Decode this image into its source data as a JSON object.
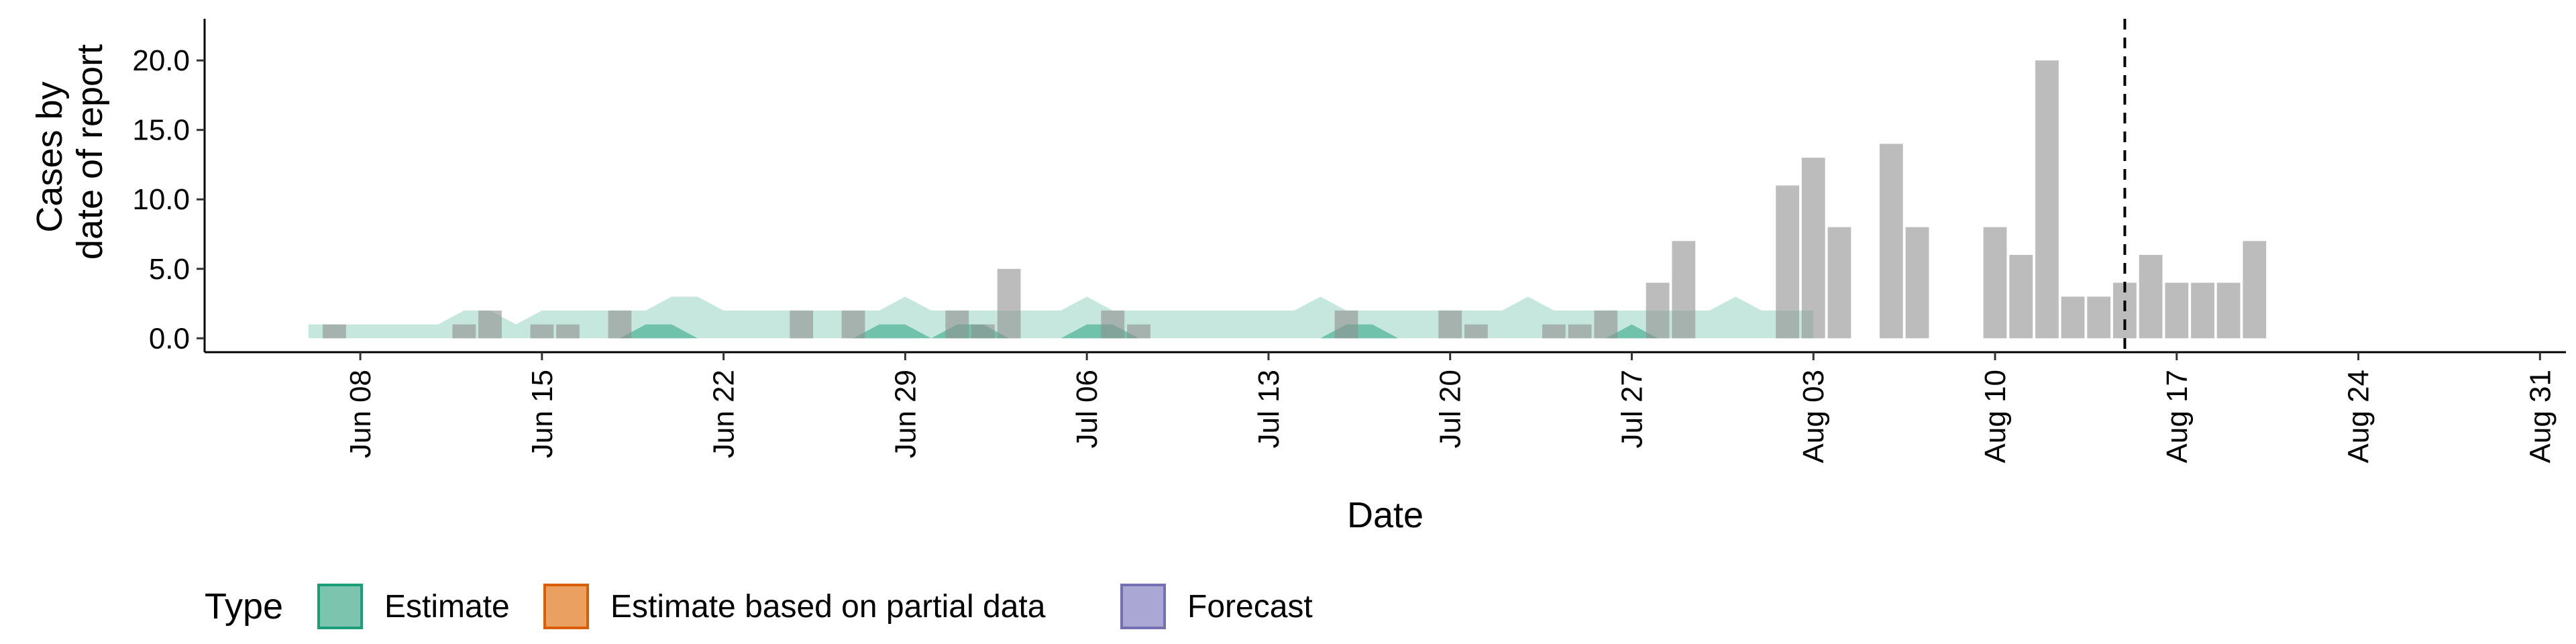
{
  "chart_data": {
    "type": "area",
    "xlabel": "Date",
    "ylabel_lines": [
      "Cases by",
      "date of report"
    ],
    "ylim": [
      -1,
      23
    ],
    "xlim": [
      "2020-06-02",
      "2020-09-01"
    ],
    "y_ticks": [
      0,
      5,
      10,
      15,
      20
    ],
    "y_tick_labels": [
      "0.0",
      "5.0",
      "10.0",
      "15.0",
      "20.0"
    ],
    "x_ticks": [
      "2020-06-08",
      "2020-06-15",
      "2020-06-22",
      "2020-06-29",
      "2020-07-06",
      "2020-07-13",
      "2020-07-20",
      "2020-07-27",
      "2020-08-03",
      "2020-08-10",
      "2020-08-17",
      "2020-08-24",
      "2020-08-31"
    ],
    "x_tick_labels": [
      "Jun 08",
      "Jun 15",
      "Jun 22",
      "Jun 29",
      "Jul 06",
      "Jul 13",
      "Jul 20",
      "Jul 27",
      "Aug 03",
      "Aug 10",
      "Aug 17",
      "Aug 24",
      "Aug 31"
    ],
    "vline_date": "2020-08-15",
    "legend": {
      "title": "Type",
      "position": "bottom-left",
      "items": [
        {
          "label": "Estimate",
          "fill": "#7cc4ad",
          "stroke": "#1b9e77"
        },
        {
          "label": "Estimate based on partial data",
          "fill": "#e9a060",
          "stroke": "#d95f02"
        },
        {
          "label": "Forecast",
          "fill": "#aaa7d4",
          "stroke": "#7570b3"
        }
      ]
    },
    "reported_cases": {
      "start_date": "2020-06-07",
      "color": "#8f8f8f",
      "values": [
        1,
        0,
        0,
        0,
        0,
        1,
        2,
        0,
        1,
        1,
        0,
        2,
        0,
        0,
        0,
        0,
        0,
        0,
        2,
        0,
        2,
        0,
        0,
        0,
        2,
        1,
        5,
        0,
        0,
        0,
        2,
        1,
        0,
        0,
        0,
        0,
        0,
        0,
        0,
        2,
        0,
        0,
        0,
        2,
        1,
        0,
        0,
        1,
        1,
        2,
        0,
        4,
        7,
        0,
        0,
        0,
        11,
        13,
        8,
        0,
        14,
        8,
        0,
        0,
        8,
        6,
        20,
        3,
        3,
        4,
        6,
        4,
        4,
        4,
        7
      ]
    },
    "series": [
      {
        "name": "Estimate",
        "start_date": "2020-06-06",
        "fill": "#1b9e77",
        "outer_lower": [
          0,
          0,
          0,
          0,
          0,
          0,
          0,
          0,
          0,
          0,
          0,
          0,
          0,
          0,
          0,
          0,
          0,
          0,
          0,
          0,
          0,
          0,
          0,
          0,
          0,
          0,
          0,
          0,
          0,
          0,
          0,
          0,
          0,
          0,
          0,
          0,
          0,
          0,
          0,
          0,
          0,
          0,
          0,
          0,
          0,
          0,
          0,
          0,
          0,
          0,
          0,
          0,
          0,
          0,
          0,
          0,
          0,
          0,
          0
        ],
        "outer_upper": [
          1,
          1,
          1,
          1,
          1,
          1,
          2,
          2,
          1,
          2,
          2,
          2,
          2,
          2,
          3,
          3,
          2,
          2,
          2,
          2,
          2,
          2,
          2,
          3,
          2,
          2,
          2,
          2,
          2,
          2,
          3,
          2,
          2,
          2,
          2,
          2,
          2,
          2,
          2,
          3,
          2,
          2,
          2,
          2,
          2,
          2,
          2,
          3,
          2,
          2,
          2,
          2,
          2,
          2,
          2,
          3,
          2,
          2,
          2
        ],
        "inner_lower": [
          0,
          0,
          0,
          0,
          0,
          0,
          0,
          0,
          0,
          0,
          0,
          0,
          0,
          0,
          0,
          0,
          0,
          0,
          0,
          0,
          0,
          0,
          0,
          0,
          0,
          0,
          0,
          0,
          0,
          0,
          0,
          0,
          0,
          0,
          0,
          0,
          0,
          0,
          0,
          0,
          0,
          0,
          0,
          0,
          0,
          0,
          0,
          0,
          0,
          0,
          0,
          0,
          0,
          0,
          0,
          0,
          0,
          0,
          0
        ],
        "inner_upper": [
          0,
          0,
          0,
          0,
          0,
          0,
          0,
          0,
          0,
          0,
          0,
          0,
          0,
          1,
          1,
          0,
          0,
          0,
          0,
          0,
          0,
          0,
          1,
          1,
          0,
          1,
          1,
          0,
          0,
          0,
          1,
          1,
          0,
          0,
          0,
          0,
          0,
          0,
          0,
          0,
          1,
          1,
          0,
          0,
          0,
          0,
          0,
          0,
          0,
          0,
          0,
          1,
          0,
          0,
          0,
          0,
          0,
          0,
          0
        ]
      }
    ]
  }
}
